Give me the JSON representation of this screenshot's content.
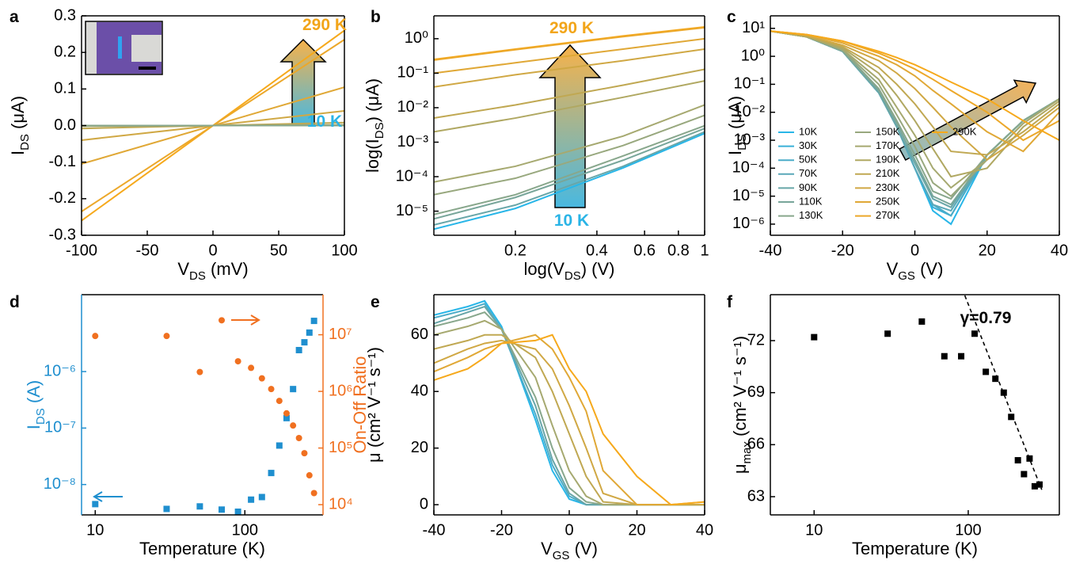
{
  "chart_data": [
    {
      "type": "line",
      "label": "a",
      "xlabel": [
        "V",
        "DS",
        " (mV)"
      ],
      "ylabel": [
        "I",
        "DS",
        " (μA)"
      ],
      "xlim": [
        -100,
        100
      ],
      "xticks": [
        -100,
        -50,
        0,
        50,
        100
      ],
      "ylim": [
        -0.3,
        0.3
      ],
      "yticks": [
        -0.3,
        -0.2,
        -0.1,
        {
          "value": 0,
          "label": "0.0"
        },
        0.1,
        0.2,
        0.3
      ],
      "x": [
        -100,
        100
      ],
      "series": [
        {
          "color": "#f6a91c",
          "values": [
            -0.26,
            0.26
          ]
        },
        {
          "color": "#eca82a",
          "values": [
            -0.235,
            0.235
          ]
        },
        {
          "color": "#e0a836",
          "values": [
            -0.105,
            0.105
          ]
        },
        {
          "color": "#d0a844",
          "values": [
            -0.04,
            0.04
          ]
        },
        {
          "color": "#c0a852",
          "values": [
            -0.008,
            0.008
          ]
        },
        {
          "color": "#a6a970",
          "values": [
            -0.002,
            0.002
          ]
        },
        {
          "color": "#88a78c",
          "values": [
            0,
            0
          ]
        }
      ],
      "annotations": [
        {
          "text": "290 K",
          "color": "#f2a51a"
        },
        {
          "text": "10 K",
          "color": "#2ab4e6"
        }
      ]
    },
    {
      "type": "line",
      "label": "b",
      "xlabel": [
        "log(V",
        "DS",
        ") (V)"
      ],
      "ylabel": [
        "log(I",
        "DS",
        ") (μA)"
      ],
      "xlog": true,
      "ylog": true,
      "xlim": [
        0.1,
        1
      ],
      "xticks": [
        0.2,
        0.4,
        0.6,
        0.8,
        1
      ],
      "ylim": [
        2e-06,
        4.6
      ],
      "yticks": [
        {
          "value": 1e-05,
          "label": "10⁻⁵"
        },
        {
          "value": 0.0001,
          "label": "10⁻⁴"
        },
        {
          "value": 0.001,
          "label": "10⁻³"
        },
        {
          "value": 0.01,
          "label": "10⁻²"
        },
        {
          "value": 0.1,
          "label": "10⁻¹"
        },
        {
          "value": 1,
          "label": "10⁰"
        }
      ],
      "x": [
        0.1,
        0.2,
        0.5,
        1
      ],
      "series": [
        {
          "color": "#f6a91c",
          "values": [
            0.25,
            0.5,
            1.2,
            2.2
          ]
        },
        {
          "color": "#eca82a",
          "values": [
            0.24,
            0.48,
            1.15,
            2.1
          ]
        },
        {
          "color": "#e0a836",
          "values": [
            0.1,
            0.2,
            0.5,
            1.0
          ]
        },
        {
          "color": "#d0a844",
          "values": [
            0.04,
            0.09,
            0.23,
            0.5
          ]
        },
        {
          "color": "#c0a852",
          "values": [
            0.005,
            0.012,
            0.045,
            0.13
          ]
        },
        {
          "color": "#b0a862",
          "values": [
            0.002,
            0.005,
            0.02,
            0.06
          ]
        },
        {
          "color": "#a6a970",
          "values": [
            7e-05,
            0.0002,
            0.0015,
            0.012
          ]
        },
        {
          "color": "#98a87e",
          "values": [
            3e-05,
            9e-05,
            0.0008,
            0.006
          ]
        },
        {
          "color": "#88a78c",
          "values": [
            8e-06,
            3e-05,
            0.0004,
            0.003
          ]
        },
        {
          "color": "#78a69a",
          "values": [
            6e-06,
            2.5e-05,
            0.0003,
            0.0025
          ]
        },
        {
          "color": "#68a6a8",
          "values": [
            4e-06,
            1.5e-05,
            0.0002,
            0.002
          ]
        },
        {
          "color": "#29b6e8",
          "values": [
            3e-06,
            1.2e-05,
            0.00018,
            0.0018
          ]
        }
      ],
      "annotations": [
        {
          "text": "290 K",
          "color": "#f2a51a"
        },
        {
          "text": "10 K",
          "color": "#2ab4e6"
        }
      ]
    },
    {
      "type": "line",
      "label": "c",
      "xlabel": [
        "V",
        "GS",
        " (V)"
      ],
      "ylabel": [
        "I",
        "DS",
        " (μA)"
      ],
      "ylog": true,
      "legend": "lower left",
      "xlim": [
        -40,
        40
      ],
      "xticks": [
        -40,
        -20,
        0,
        20,
        40
      ],
      "ylim": [
        4e-07,
        28
      ],
      "yticks": [
        {
          "value": 1e-06,
          "label": "10⁻⁶"
        },
        {
          "value": 1e-05,
          "label": "10⁻⁵"
        },
        {
          "value": 0.0001,
          "label": "10⁻⁴"
        },
        {
          "value": 0.001,
          "label": "10⁻³"
        },
        {
          "value": 0.01,
          "label": "10⁻²"
        },
        {
          "value": 0.1,
          "label": "10⁻¹"
        },
        {
          "value": 1,
          "label": "10⁰"
        },
        {
          "value": 10,
          "label": "10¹"
        }
      ],
      "x": [
        -40,
        -30,
        -20,
        -10,
        -5,
        0,
        5,
        10,
        20,
        30,
        40
      ],
      "series": [
        {
          "name": "10K",
          "color": "#29b6e8",
          "values": [
            8,
            5,
            1.5,
            0.05,
            0.003,
            0.0001,
            3e-06,
            1e-06,
            0.0003,
            0.005,
            0.03
          ]
        },
        {
          "name": "30K",
          "color": "#3ab0d8",
          "values": [
            8,
            5,
            1.5,
            0.05,
            0.003,
            0.0001,
            4e-06,
            2e-06,
            0.0003,
            0.005,
            0.03
          ]
        },
        {
          "name": "50K",
          "color": "#4aacc8",
          "values": [
            8,
            5,
            1.5,
            0.05,
            0.003,
            0.0001,
            5e-06,
            2e-06,
            0.0003,
            0.005,
            0.03
          ]
        },
        {
          "name": "70K",
          "color": "#5aa8b8",
          "values": [
            8,
            5,
            1.5,
            0.05,
            0.003,
            0.0001,
            5e-06,
            3e-06,
            0.0003,
            0.005,
            0.03
          ]
        },
        {
          "name": "90K",
          "color": "#68a6a8",
          "values": [
            8,
            5,
            1.5,
            0.05,
            0.003,
            0.00015,
            8e-06,
            4e-06,
            0.0003,
            0.005,
            0.03
          ]
        },
        {
          "name": "110K",
          "color": "#78a69a",
          "values": [
            8,
            5,
            1.5,
            0.06,
            0.004,
            0.0002,
            1e-05,
            5e-06,
            0.0003,
            0.005,
            0.03
          ]
        },
        {
          "name": "130K",
          "color": "#88a78c",
          "values": [
            8,
            5,
            1.6,
            0.07,
            0.005,
            0.0003,
            1.5e-05,
            8e-06,
            0.0003,
            0.005,
            0.03
          ]
        },
        {
          "name": "150K",
          "color": "#98a87e",
          "values": [
            8,
            5,
            1.7,
            0.1,
            0.008,
            0.0006,
            3e-05,
            1e-05,
            0.0002,
            0.004,
            0.03
          ]
        },
        {
          "name": "170K",
          "color": "#a6a970",
          "values": [
            8,
            5,
            1.8,
            0.15,
            0.015,
            0.0015,
            0.0001,
            2e-05,
            0.0002,
            0.004,
            0.03
          ]
        },
        {
          "name": "190K",
          "color": "#b0a862",
          "values": [
            8,
            5,
            2,
            0.25,
            0.04,
            0.005,
            0.0005,
            5e-05,
            0.0001,
            0.003,
            0.025
          ]
        },
        {
          "name": "210K",
          "color": "#c0a852",
          "values": [
            8,
            5.5,
            2.2,
            0.4,
            0.1,
            0.02,
            0.003,
            0.0004,
            0.0003,
            0.002,
            0.02
          ]
        },
        {
          "name": "230K",
          "color": "#d0a844",
          "values": [
            8,
            5.5,
            2.5,
            0.7,
            0.25,
            0.07,
            0.015,
            0.003,
            0.0002,
            0.0015,
            0.015
          ]
        },
        {
          "name": "250K",
          "color": "#e0a836",
          "values": [
            8,
            6,
            3,
            1,
            0.5,
            0.2,
            0.06,
            0.02,
            0.002,
            0.0004,
            0.01
          ]
        },
        {
          "name": "270K",
          "color": "#eca82a",
          "values": [
            8,
            6,
            3.5,
            1.3,
            0.7,
            0.35,
            0.15,
            0.06,
            0.01,
            0.001,
            0.005
          ]
        },
        {
          "name": "290K",
          "color": "#f6a91c",
          "values": [
            8,
            6,
            3.5,
            1.5,
            0.9,
            0.5,
            0.25,
            0.12,
            0.03,
            0.005,
            0.001
          ]
        }
      ]
    },
    {
      "type": "scatter",
      "label": "d",
      "xlabel": [
        "Temperature (K)"
      ],
      "ylabel": [
        "I",
        "DS",
        " (A)"
      ],
      "y2label": [
        "On-Off Ratio"
      ],
      "xlog": true,
      "ylog": true,
      "y2log": true,
      "ycolor": "#1f8fcf",
      "y2color": "#f07020",
      "xlim": [
        8.1,
        333
      ],
      "xticks": [
        10,
        100
      ],
      "ylim": [
        2.9e-09,
        2.3e-05
      ],
      "yticks": [
        {
          "value": 1e-08,
          "label": "10⁻⁸"
        },
        {
          "value": 1e-07,
          "label": "10⁻⁷"
        },
        {
          "value": 1e-06,
          "label": "10⁻⁶"
        }
      ],
      "y2lim": [
        6600,
        51000000
      ],
      "y2ticks": [
        {
          "value": 10000,
          "label": "10⁴"
        },
        {
          "value": 100000,
          "label": "10⁵"
        },
        {
          "value": 1000000,
          "label": "10⁶"
        },
        {
          "value": 10000000,
          "label": "10⁷"
        }
      ],
      "x": [
        10,
        30,
        50,
        70,
        90,
        110,
        130,
        150,
        170,
        190,
        210,
        230,
        250,
        270,
        290
      ],
      "series": [
        {
          "color": "#1f8fcf",
          "marker": "square",
          "values": [
            4.5e-09,
            3.7e-09,
            4.1e-09,
            3.6e-09,
            3.3e-09,
            5.4e-09,
            6e-09,
            1.6e-08,
            4.9e-08,
            1.5e-07,
            4.9e-07,
            2.4e-06,
            3.3e-06,
            4.9e-06,
            7.9e-06
          ]
        },
        {
          "color": "#f07020",
          "marker": "circle",
          "axis": "y2",
          "values": [
            9500000,
            9500000,
            2200000,
            18000000,
            3400000,
            2600000,
            1700000,
            1100000,
            680000,
            410000,
            250000,
            150000,
            81000,
            33000,
            16000
          ]
        }
      ]
    },
    {
      "type": "line",
      "label": "e",
      "xlabel": [
        "V",
        "GS",
        " (V)"
      ],
      "ylabel": [
        "μ (cm² V⁻¹ s⁻¹)"
      ],
      "xlim": [
        -40,
        40
      ],
      "xticks": [
        -40,
        -20,
        0,
        20,
        40
      ],
      "ylim": [
        -3.6,
        74.2
      ],
      "yticks": [
        0,
        20,
        40,
        60
      ],
      "x": [
        -40,
        -30,
        -25,
        -20,
        -10,
        -5,
        0,
        5,
        10,
        20,
        30,
        40
      ],
      "series": [
        {
          "color": "#29b6e8",
          "values": [
            67,
            70,
            72,
            63,
            30,
            12,
            2,
            0,
            0,
            0,
            0,
            0
          ]
        },
        {
          "color": "#4aacc8",
          "values": [
            66,
            69,
            71,
            62,
            32,
            14,
            3,
            0,
            0,
            0,
            0,
            0
          ]
        },
        {
          "color": "#68a6a8",
          "values": [
            64,
            68,
            70,
            62,
            35,
            16,
            4,
            0,
            0,
            0,
            0,
            0
          ]
        },
        {
          "color": "#88a78c",
          "values": [
            63,
            66,
            68,
            62,
            38,
            20,
            6,
            1,
            0,
            0,
            0,
            0
          ]
        },
        {
          "color": "#a6a970",
          "values": [
            60,
            63,
            65,
            62,
            45,
            28,
            12,
            3,
            0,
            0,
            0,
            0
          ]
        },
        {
          "color": "#c0a852",
          "values": [
            55,
            58,
            60,
            60,
            52,
            40,
            25,
            10,
            1,
            0,
            0,
            0
          ]
        },
        {
          "color": "#d0a844",
          "values": [
            50,
            55,
            57,
            58,
            55,
            48,
            35,
            20,
            4,
            0,
            0,
            0
          ]
        },
        {
          "color": "#e0a836",
          "values": [
            47,
            52,
            55,
            57,
            60,
            55,
            45,
            33,
            12,
            0,
            0,
            1
          ]
        },
        {
          "color": "#f6a91c",
          "values": [
            44,
            48,
            52,
            57,
            58,
            60,
            48,
            40,
            25,
            10,
            0,
            1
          ]
        }
      ]
    },
    {
      "type": "scatter",
      "label": "f",
      "xlabel": [
        "Temperature (K)"
      ],
      "ylabel": [
        "μ",
        "max",
        " (cm² V⁻¹ s⁻¹)"
      ],
      "xlog": true,
      "xlim": [
        5.2,
        390
      ],
      "xticks": [
        10,
        100
      ],
      "ylim": [
        61.95,
        74.65
      ],
      "yticks": [
        63,
        66,
        69,
        72
      ],
      "x": [
        10,
        30,
        50,
        70,
        90,
        110,
        130,
        150,
        170,
        190,
        210,
        230,
        250,
        270,
        290
      ],
      "series": [
        {
          "color": "#000000",
          "marker": "square",
          "values": [
            72.2,
            72.4,
            73.1,
            71.1,
            71.1,
            72.4,
            70.2,
            69.8,
            69.0,
            67.6,
            65.1,
            64.3,
            65.2,
            63.6,
            63.7
          ]
        }
      ],
      "fit": {
        "x": [
          95,
          300
        ],
        "values": [
          74.6,
          63.4
        ],
        "color": "#000000"
      },
      "annotations": [
        {
          "text": "γ=0.79",
          "color": "#000000"
        }
      ]
    }
  ]
}
